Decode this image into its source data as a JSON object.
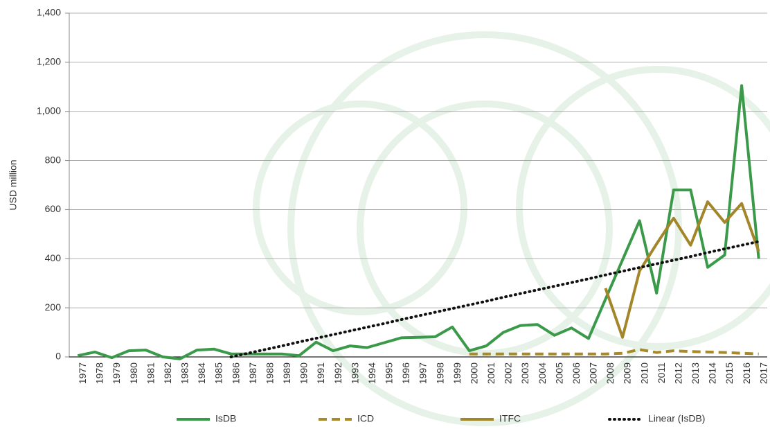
{
  "chart_data": {
    "type": "line",
    "y_label": "USD million",
    "categories": [
      "1977",
      "1978",
      "1979",
      "1980",
      "1981",
      "1982",
      "1983",
      "1984",
      "1985",
      "1986",
      "1987",
      "1988",
      "1989",
      "1990",
      "1991",
      "1992",
      "1993",
      "1994",
      "1995",
      "1996",
      "1997",
      "1998",
      "1999",
      "2000",
      "2001",
      "2002",
      "2003",
      "2004",
      "2005",
      "2006",
      "2007",
      "2008",
      "2009",
      "2010",
      "2011",
      "2012",
      "2013",
      "2014",
      "2015",
      "2016",
      "2017"
    ],
    "series": [
      {
        "name": "IsDB",
        "color": "#3a9a4a",
        "style": "solid",
        "values": [
          5,
          20,
          -3,
          25,
          28,
          0,
          -8,
          28,
          32,
          12,
          12,
          12,
          12,
          5,
          60,
          25,
          45,
          38,
          58,
          78,
          80,
          82,
          122,
          25,
          45,
          100,
          128,
          132,
          88,
          118,
          75,
          235,
          395,
          555,
          260,
          680,
          680,
          365,
          415,
          1105,
          400
        ]
      },
      {
        "name": "ICD",
        "color": "#a88a2a",
        "style": "dashed",
        "values": [
          null,
          null,
          null,
          null,
          null,
          null,
          null,
          null,
          null,
          null,
          null,
          null,
          null,
          null,
          null,
          null,
          null,
          null,
          null,
          null,
          null,
          null,
          null,
          12,
          12,
          12,
          12,
          12,
          12,
          12,
          12,
          12,
          15,
          30,
          18,
          25,
          22,
          20,
          18,
          15,
          12
        ]
      },
      {
        "name": "ITFC",
        "color": "#a3852a",
        "style": "solid",
        "values": [
          null,
          null,
          null,
          null,
          null,
          null,
          null,
          null,
          null,
          null,
          null,
          null,
          null,
          null,
          null,
          null,
          null,
          null,
          null,
          null,
          null,
          null,
          null,
          null,
          null,
          null,
          null,
          null,
          null,
          null,
          null,
          280,
          80,
          350,
          460,
          565,
          455,
          632,
          548,
          625,
          430
        ]
      },
      {
        "name": "Linear (IsDB)",
        "color": "#111111",
        "style": "dotted",
        "values": [
          null,
          null,
          null,
          null,
          null,
          null,
          null,
          null,
          null,
          0,
          15,
          30,
          45,
          61,
          76,
          91,
          106,
          121,
          136,
          152,
          167,
          182,
          197,
          212,
          227,
          243,
          258,
          273,
          288,
          303,
          318,
          334,
          349,
          364,
          379,
          394,
          409,
          425,
          440,
          455,
          470
        ]
      }
    ],
    "ylim": [
      0,
      1400
    ],
    "yticks": [
      0,
      200,
      400,
      600,
      800,
      {
        "value": 1000,
        "label": "1,000"
      },
      {
        "value": 1200,
        "label": "1,200"
      },
      {
        "value": 1400,
        "label": "1,400"
      }
    ],
    "grid": true,
    "legend": "bottom"
  }
}
